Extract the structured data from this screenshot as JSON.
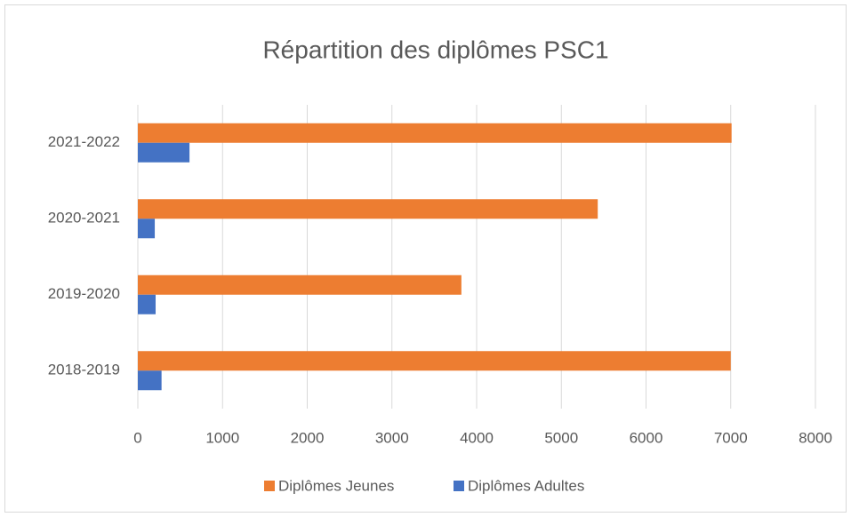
{
  "chart_data": {
    "type": "hbar",
    "title": "Répartition des diplômes PSC1",
    "categories": [
      "2018-2019",
      "2019-2020",
      "2020-2021",
      "2021-2022"
    ],
    "series": [
      {
        "name": "Diplômes Jeunes",
        "color": "#ed7d31",
        "values": [
          7000,
          3820,
          5430,
          7010
        ]
      },
      {
        "name": "Diplômes Adultes",
        "color": "#4472c4",
        "values": [
          280,
          210,
          200,
          610
        ]
      }
    ],
    "xlim": [
      0,
      8000
    ],
    "xticks": [
      0,
      1000,
      2000,
      3000,
      4000,
      5000,
      6000,
      7000,
      8000
    ],
    "grid": true,
    "legend": "bottom"
  }
}
